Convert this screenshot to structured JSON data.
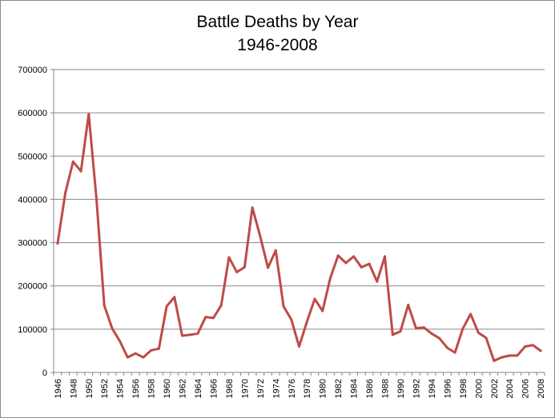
{
  "chart_data": {
    "type": "line",
    "title": "Battle Deaths by Year",
    "subtitle": "1946-2008",
    "xlabel": "",
    "ylabel": "",
    "ylim": [
      0,
      700000
    ],
    "yticks": [
      "0",
      "100000",
      "200000",
      "300000",
      "400000",
      "500000",
      "600000",
      "700000"
    ],
    "xtick_labels": [
      "1946",
      "1948",
      "1950",
      "1952",
      "1954",
      "1956",
      "1958",
      "1960",
      "1962",
      "1964",
      "1966",
      "1968",
      "1970",
      "1972",
      "1974",
      "1976",
      "1978",
      "1980",
      "1982",
      "1984",
      "1986",
      "1988",
      "1990",
      "1992",
      "1994",
      "1996",
      "1998",
      "2000",
      "2002",
      "2004",
      "2006",
      "2008"
    ],
    "grid": true,
    "legend": "none",
    "series_color": "#be4b48",
    "x": [
      1946,
      1947,
      1948,
      1949,
      1950,
      1951,
      1952,
      1953,
      1954,
      1955,
      1956,
      1957,
      1958,
      1959,
      1960,
      1961,
      1962,
      1963,
      1964,
      1965,
      1966,
      1967,
      1968,
      1969,
      1970,
      1971,
      1972,
      1973,
      1974,
      1975,
      1976,
      1977,
      1978,
      1979,
      1980,
      1981,
      1982,
      1983,
      1984,
      1985,
      1986,
      1987,
      1988,
      1989,
      1990,
      1991,
      1992,
      1993,
      1994,
      1995,
      1996,
      1997,
      1998,
      1999,
      2000,
      2001,
      2002,
      2003,
      2004,
      2005,
      2006,
      2007,
      2008
    ],
    "values": [
      298000,
      415000,
      487000,
      465000,
      597000,
      400000,
      155000,
      102000,
      72000,
      35000,
      44000,
      35000,
      51000,
      55000,
      153000,
      174000,
      85000,
      87000,
      90000,
      128000,
      126000,
      155000,
      266000,
      232000,
      243000,
      381000,
      315000,
      242000,
      282000,
      153000,
      122000,
      60000,
      117000,
      170000,
      142000,
      218000,
      270000,
      253000,
      268000,
      243000,
      251000,
      210000,
      268000,
      87000,
      95000,
      156000,
      102000,
      104000,
      90000,
      79000,
      57000,
      46000,
      101000,
      135000,
      92000,
      80000,
      27000,
      35000,
      39000,
      39000,
      60000,
      63000,
      50000
    ]
  }
}
